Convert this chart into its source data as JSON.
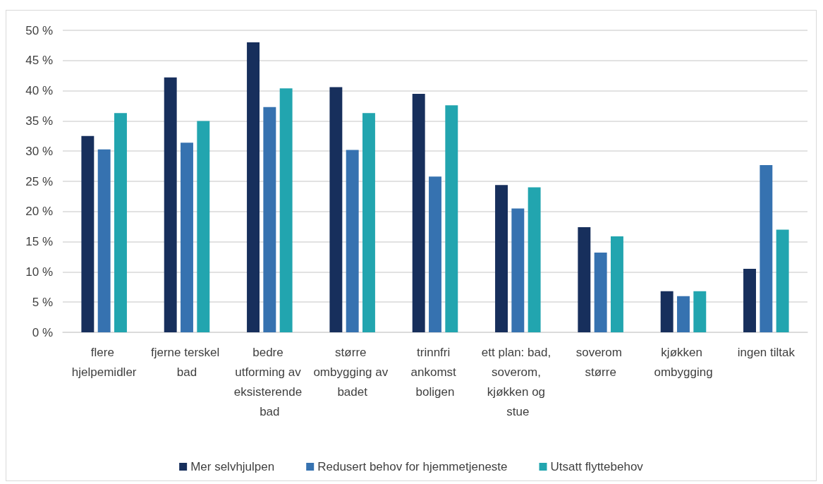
{
  "chart_data": {
    "type": "bar",
    "categories": [
      "flere hjelpemidler",
      "fjerne terskel bad",
      "bedre utforming av eksisterende bad",
      "større ombygging av badet",
      "trinnfri ankomst boligen",
      "ett plan: bad, soverom, kjøkken og stue",
      "soverom større",
      "kjøkken ombygging",
      "ingen tiltak"
    ],
    "series": [
      {
        "name": "Mer selvhjulpen",
        "color": "#172f5c",
        "values": [
          32.5,
          42.2,
          48.0,
          40.6,
          39.5,
          24.4,
          17.4,
          6.8,
          10.5
        ]
      },
      {
        "name": "Redusert behov for hjemmetjeneste",
        "color": "#3672b0",
        "values": [
          30.3,
          31.4,
          37.3,
          30.2,
          25.8,
          20.5,
          13.2,
          6.0,
          27.7
        ]
      },
      {
        "name": "Utsatt flyttebehov",
        "color": "#22a5af",
        "values": [
          36.3,
          35.0,
          40.4,
          36.3,
          37.6,
          24.0,
          15.9,
          6.8,
          17.0
        ]
      }
    ],
    "ylim": [
      0,
      50
    ],
    "yticks": [
      {
        "value": 0,
        "label": "0 %"
      },
      {
        "value": 5,
        "label": "5 %"
      },
      {
        "value": 10,
        "label": "10 %"
      },
      {
        "value": 15,
        "label": "15 %"
      },
      {
        "value": 20,
        "label": "20 %"
      },
      {
        "value": 25,
        "label": "25 %"
      },
      {
        "value": 30,
        "label": "30 %"
      },
      {
        "value": 35,
        "label": "35 %"
      },
      {
        "value": 40,
        "label": "40 %"
      },
      {
        "value": 45,
        "label": "45 %"
      },
      {
        "value": 50,
        "label": "50 %"
      }
    ],
    "grid": "y",
    "legend": "bottom"
  }
}
